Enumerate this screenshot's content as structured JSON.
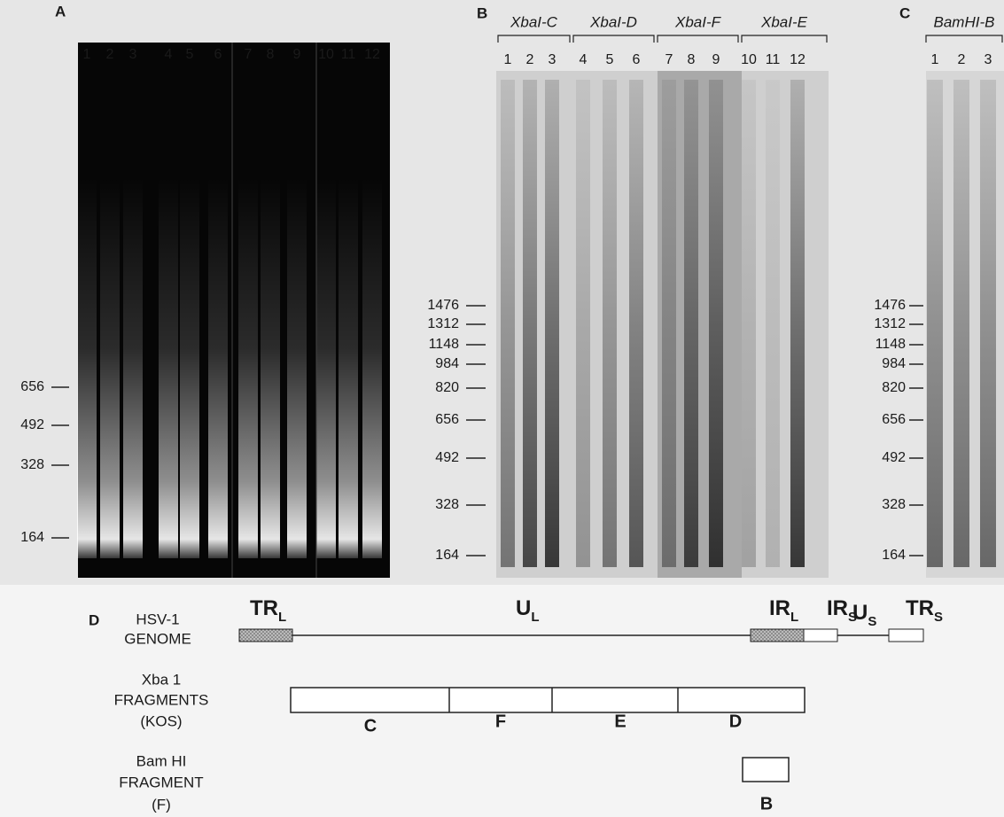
{
  "panel_a": {
    "label": "A",
    "lanes": [
      "1",
      "2",
      "3",
      "4",
      "5",
      "6",
      "7",
      "8",
      "9",
      "10",
      "11",
      "12"
    ],
    "markers": [
      656,
      492,
      328,
      164
    ]
  },
  "panel_b": {
    "label": "B",
    "groups": [
      {
        "name": "XbaI-C",
        "lanes": [
          "1",
          "2",
          "3"
        ]
      },
      {
        "name": "XbaI-D",
        "lanes": [
          "4",
          "5",
          "6"
        ]
      },
      {
        "name": "XbaI-F",
        "lanes": [
          "7",
          "8",
          "9"
        ]
      },
      {
        "name": "XbaI-E",
        "lanes": [
          "10",
          "11",
          "12"
        ]
      }
    ],
    "markers": [
      1476,
      1312,
      1148,
      984,
      820,
      656,
      492,
      328,
      164
    ]
  },
  "panel_c": {
    "label": "C",
    "groups": [
      {
        "name": "BamHI-B",
        "lanes": [
          "1",
          "2",
          "3"
        ]
      }
    ],
    "markers": [
      1476,
      1312,
      1148,
      984,
      820,
      656,
      492,
      328,
      164
    ]
  },
  "panel_d": {
    "label": "D",
    "genome_label": [
      "HSV-1",
      "GENOME"
    ],
    "regions": [
      {
        "main": "TR",
        "sub": "L"
      },
      {
        "main": "U",
        "sub": "L"
      },
      {
        "main": "IR",
        "sub": "L"
      },
      {
        "main": "IR",
        "sub": "S"
      },
      {
        "main": "U",
        "sub": "S"
      },
      {
        "main": "TR",
        "sub": "S"
      }
    ],
    "xba_label": [
      "Xba 1",
      "FRAGMENTS",
      "(KOS)"
    ],
    "xba_fragments": [
      "C",
      "F",
      "E",
      "D"
    ],
    "bam_label": [
      "Bam HI",
      "FRAGMENT",
      "(F)"
    ],
    "bam_fragment": "B"
  }
}
